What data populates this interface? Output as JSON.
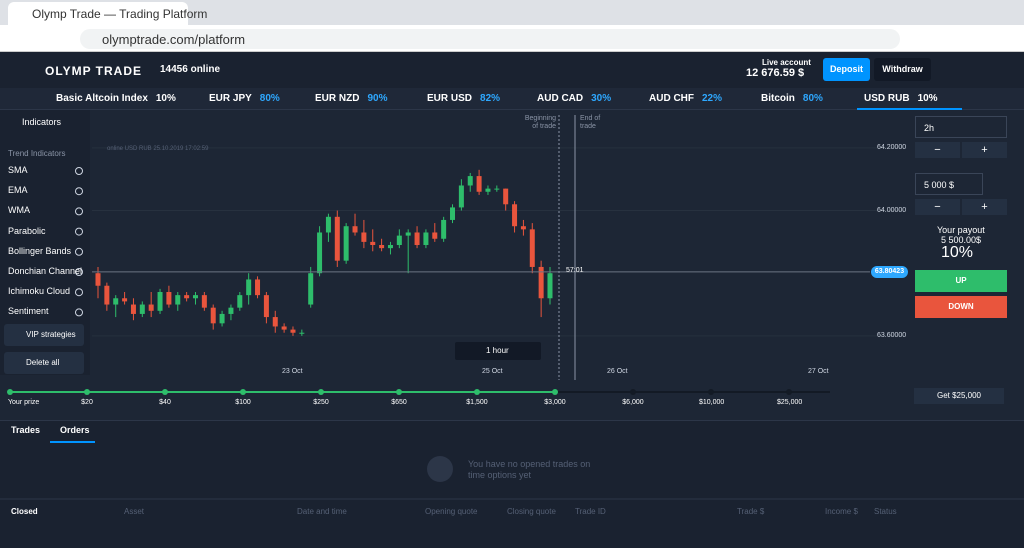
{
  "browser": {
    "tab_title": "Olymp Trade — Trading Platform",
    "url": "olymptrade.com/platform"
  },
  "header": {
    "logo": "OLYMP TRADE",
    "online": "14456 online",
    "account_label": "Live account",
    "balance": "12 676.59 $",
    "deposit": "Deposit",
    "withdraw": "Withdraw"
  },
  "assets": [
    {
      "name": "Basic Altcoin Index",
      "payout": "10%"
    },
    {
      "name": "EUR JPY",
      "payout": "80%"
    },
    {
      "name": "EUR NZD",
      "payout": "90%"
    },
    {
      "name": "EUR USD",
      "payout": "82%"
    },
    {
      "name": "AUD CAD",
      "payout": "30%"
    },
    {
      "name": "AUD CHF",
      "payout": "22%"
    },
    {
      "name": "Bitcoin",
      "payout": "80%"
    },
    {
      "name": "USD RUB",
      "payout": "10%"
    }
  ],
  "indicators": {
    "title": "Indicators",
    "section": "Trend Indicators",
    "items": [
      "SMA",
      "EMA",
      "WMA",
      "Parabolic",
      "Bollinger Bands",
      "Donchian Channel",
      "Ichimoku Cloud",
      "Sentiment"
    ],
    "vip": "VIP strategies",
    "delete": "Delete all"
  },
  "chart_data": {
    "type": "candlestick",
    "info": "online USD RUB 25.10.2019 17:02:59",
    "beginning": "Beginning of trade",
    "end": "End of trade",
    "timeframe": "1 hour",
    "entry_time": "57:01",
    "x_labels": [
      "23 Oct",
      "25 Oct",
      "26 Oct",
      "27 Oct"
    ],
    "ylim": [
      63.507,
      64.305
    ],
    "yticks": [
      {
        "value": 64.2,
        "label": "64.20000"
      },
      {
        "value": 64.0,
        "label": "64.00000"
      },
      {
        "value": 63.6,
        "label": "63.60000"
      }
    ],
    "current_price": {
      "value": 63.80423,
      "label": "63.80423"
    },
    "up_color": "#2ebd6b",
    "down_color": "#e9553d",
    "candles": [
      [
        63.8,
        63.82,
        63.72,
        63.76
      ],
      [
        63.76,
        63.77,
        63.68,
        63.7
      ],
      [
        63.7,
        63.73,
        63.66,
        63.72
      ],
      [
        63.72,
        63.74,
        63.7,
        63.71
      ],
      [
        63.7,
        63.72,
        63.65,
        63.67
      ],
      [
        63.67,
        63.71,
        63.66,
        63.7
      ],
      [
        63.7,
        63.74,
        63.66,
        63.68
      ],
      [
        63.68,
        63.75,
        63.67,
        63.74
      ],
      [
        63.74,
        63.76,
        63.69,
        63.7
      ],
      [
        63.7,
        63.74,
        63.68,
        63.73
      ],
      [
        63.73,
        63.74,
        63.71,
        63.72
      ],
      [
        63.72,
        63.74,
        63.7,
        63.73
      ],
      [
        63.73,
        63.74,
        63.68,
        63.69
      ],
      [
        63.69,
        63.7,
        63.62,
        63.64
      ],
      [
        63.64,
        63.68,
        63.63,
        63.67
      ],
      [
        63.67,
        63.7,
        63.65,
        63.69
      ],
      [
        63.69,
        63.74,
        63.68,
        63.73
      ],
      [
        63.73,
        63.8,
        63.7,
        63.78
      ],
      [
        63.78,
        63.79,
        63.72,
        63.73
      ],
      [
        63.73,
        63.74,
        63.64,
        63.66
      ],
      [
        63.66,
        63.68,
        63.61,
        63.63
      ],
      [
        63.63,
        63.64,
        63.61,
        63.62
      ],
      [
        63.62,
        63.63,
        63.6,
        63.61
      ],
      [
        63.61,
        63.62,
        63.6,
        63.61
      ],
      [
        63.7,
        63.82,
        63.69,
        63.8
      ],
      [
        63.8,
        63.95,
        63.79,
        63.93
      ],
      [
        63.93,
        63.99,
        63.9,
        63.98
      ],
      [
        63.98,
        64.0,
        63.82,
        63.84
      ],
      [
        63.84,
        63.96,
        63.83,
        63.95
      ],
      [
        63.95,
        63.99,
        63.92,
        63.93
      ],
      [
        63.93,
        63.97,
        63.88,
        63.9
      ],
      [
        63.9,
        63.94,
        63.87,
        63.89
      ],
      [
        63.89,
        63.91,
        63.87,
        63.88
      ],
      [
        63.88,
        63.9,
        63.86,
        63.89
      ],
      [
        63.89,
        63.94,
        63.88,
        63.92
      ],
      [
        63.92,
        63.94,
        63.8,
        63.93
      ],
      [
        63.93,
        63.95,
        63.88,
        63.89
      ],
      [
        63.89,
        63.94,
        63.88,
        63.93
      ],
      [
        63.93,
        63.96,
        63.9,
        63.91
      ],
      [
        63.91,
        63.98,
        63.9,
        63.97
      ],
      [
        63.97,
        64.02,
        63.96,
        64.01
      ],
      [
        64.01,
        64.1,
        64.0,
        64.08
      ],
      [
        64.08,
        64.12,
        64.06,
        64.11
      ],
      [
        64.11,
        64.13,
        64.05,
        64.06
      ],
      [
        64.06,
        64.08,
        64.05,
        64.07
      ],
      [
        64.07,
        64.08,
        64.06,
        64.07
      ],
      [
        64.07,
        64.07,
        64.0,
        64.02
      ],
      [
        64.02,
        64.03,
        63.93,
        63.95
      ],
      [
        63.95,
        63.97,
        63.92,
        63.94
      ],
      [
        63.94,
        63.96,
        63.8,
        63.82
      ],
      [
        63.82,
        63.84,
        63.66,
        63.72
      ],
      [
        63.72,
        63.82,
        63.7,
        63.8
      ]
    ]
  },
  "ladder": {
    "label": "Your prize",
    "prizes": [
      "$20",
      "$40",
      "$100",
      "$250",
      "$650",
      "$1,500",
      "$3,000",
      "$6,000",
      "$10,000",
      "$25,000"
    ],
    "reached": 7,
    "goal": "Get $25,000"
  },
  "trade_panel": {
    "duration": "2h",
    "minus": "−",
    "plus": "+",
    "amount": "5 000 $",
    "payout_label": "Your payout",
    "payout": "5 500.00$",
    "percent": "10%",
    "up": "UP",
    "down": "DOWN"
  },
  "trades": {
    "tabs": [
      "Trades",
      "Orders"
    ],
    "empty": "You have no opened trades on time options yet",
    "columns": [
      "Closed",
      "Asset",
      "Date and time",
      "Opening quote",
      "Closing quote",
      "Trade ID",
      "Trade $",
      "Income $",
      "Status"
    ]
  }
}
